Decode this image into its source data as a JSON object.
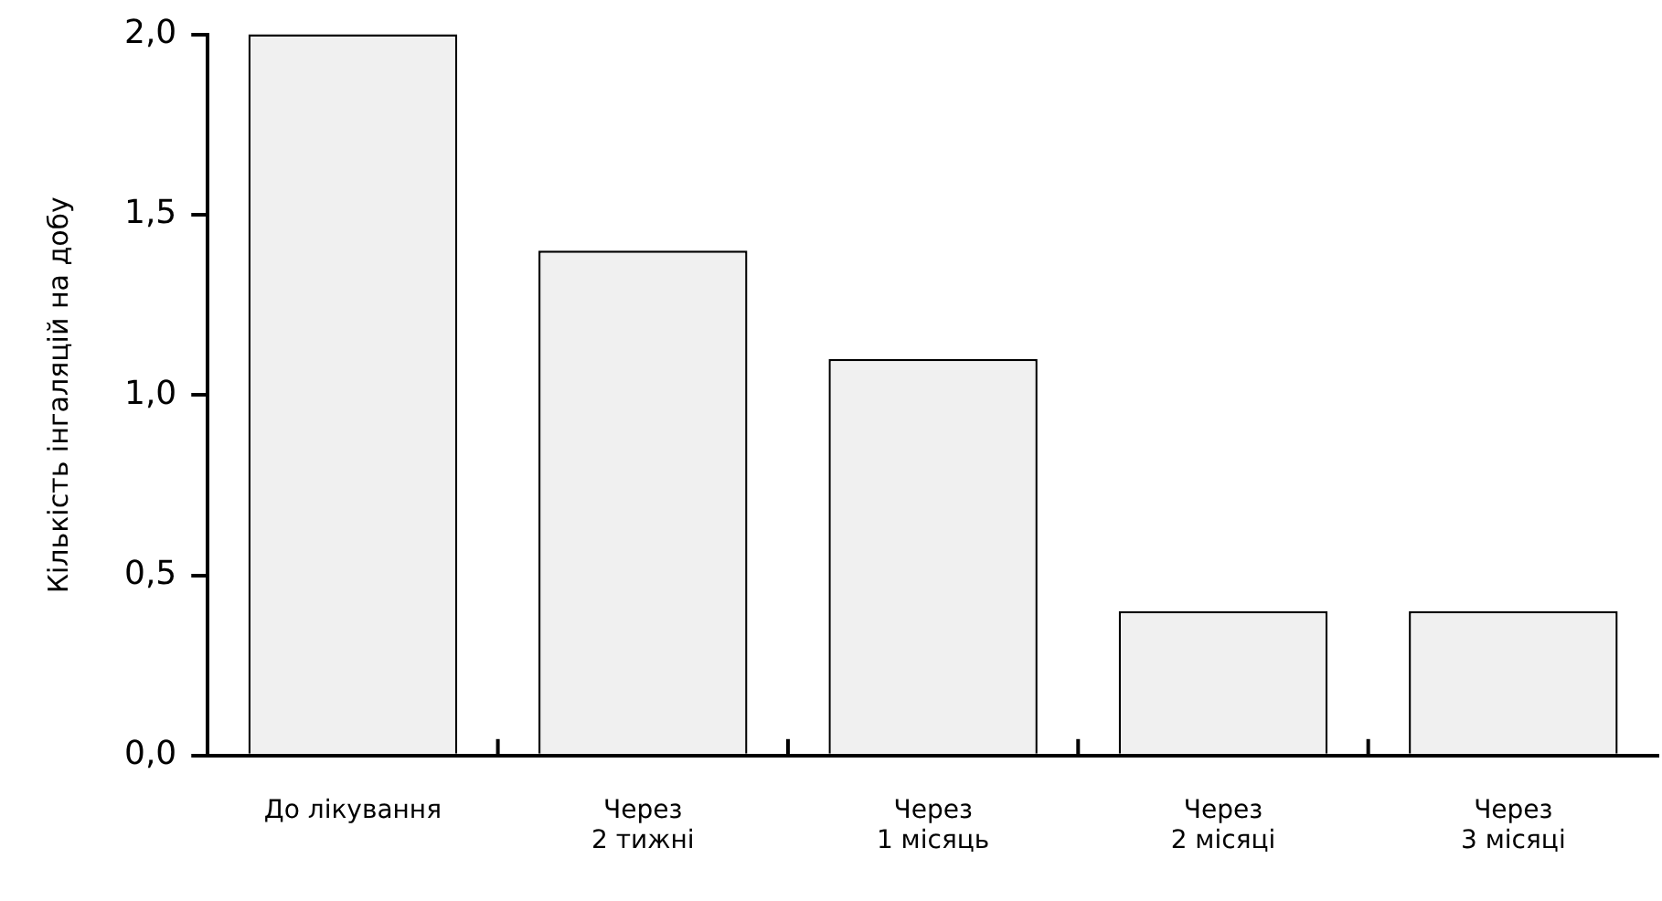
{
  "chart_data": {
    "type": "bar",
    "ylabel": "Кількість інгаляцій на добу",
    "categories": [
      "До лікування",
      "Через\n2 тижні",
      "Через\n1 місяць",
      "Через\n2 місяці",
      "Через\n3 місяці"
    ],
    "values": [
      2.0,
      1.4,
      1.1,
      0.4,
      0.4
    ],
    "color": "#f0f0f0",
    "ylim": [
      0,
      2
    ],
    "yticks": [
      {
        "value": 0,
        "label": "0,0"
      },
      {
        "value": 0.5,
        "label": "0,5"
      },
      {
        "value": 1,
        "label": "1,0"
      },
      {
        "value": 1.5,
        "label": "1,5"
      },
      {
        "value": 2,
        "label": "2,0"
      }
    ],
    "grid": false,
    "legend": false
  }
}
